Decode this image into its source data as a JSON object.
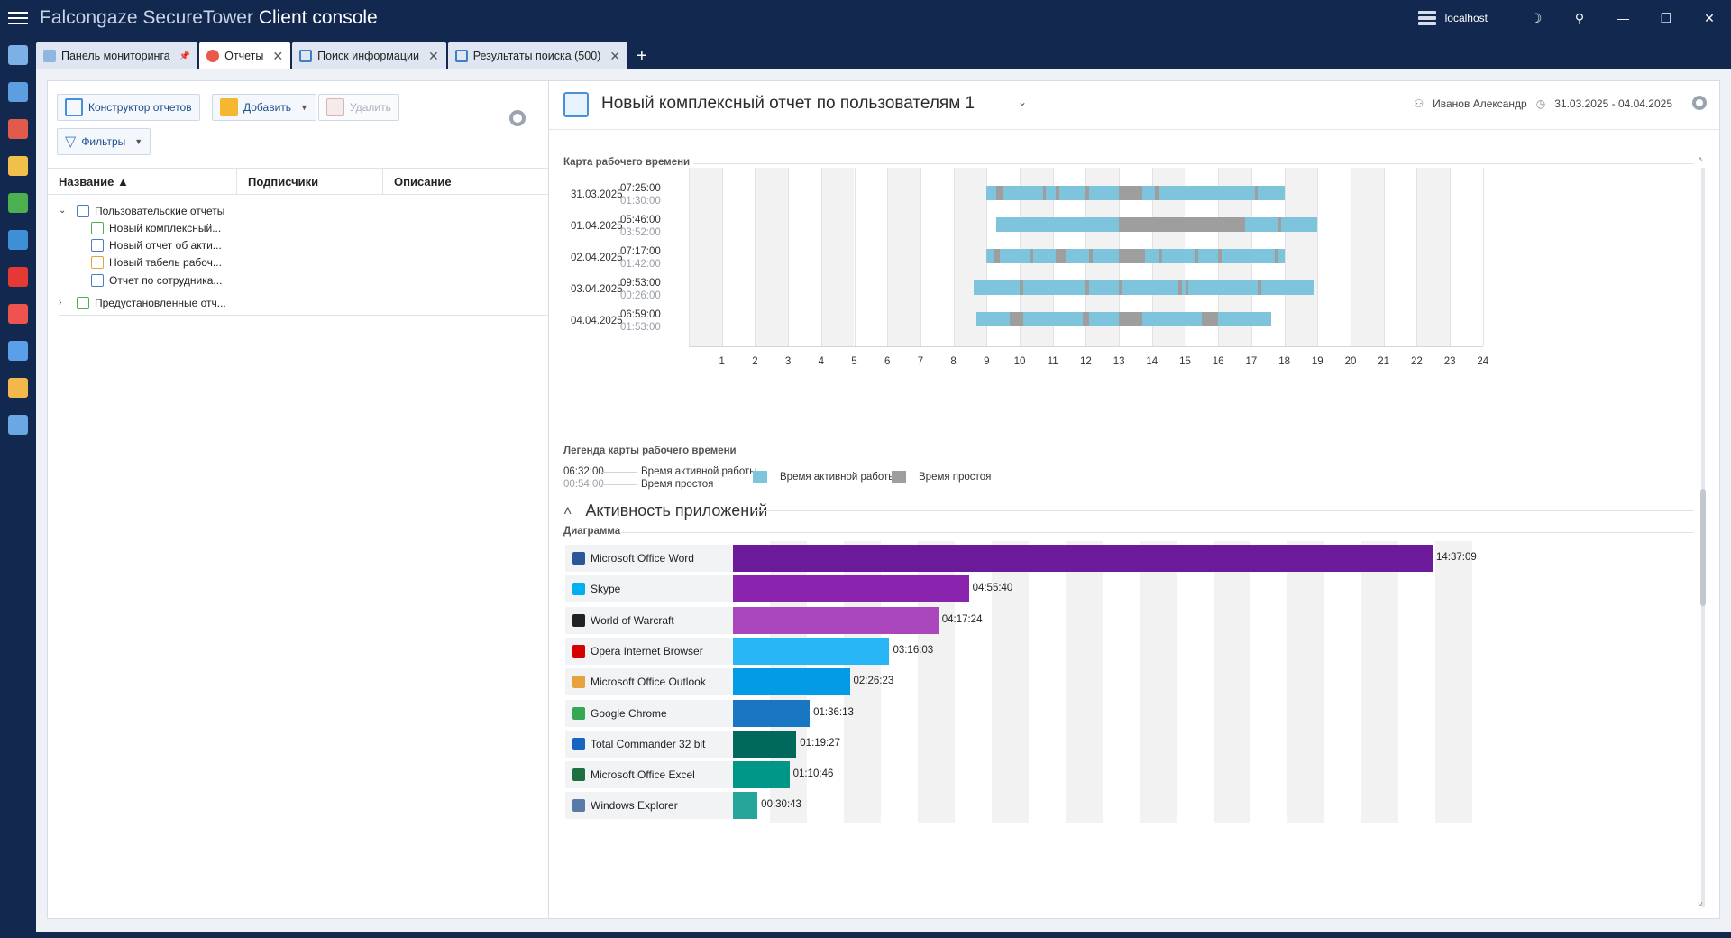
{
  "app": {
    "title_prefix": "Falcongaze SecureTower",
    "title_main": "Client console",
    "server": "localhost"
  },
  "window_controls": {
    "theme": "☽",
    "user": "⚲",
    "minimize": "—",
    "restore": "❐",
    "close": "✕"
  },
  "tabs": [
    {
      "label": "Панель мониторинга",
      "close": "📌"
    },
    {
      "label": "Отчеты",
      "close": "✕"
    },
    {
      "label": "Поиск информации",
      "close": "✕"
    },
    {
      "label": "Результаты поиска (500)",
      "close": "✕"
    }
  ],
  "add_tab": "+",
  "left": {
    "toolbar": {
      "constructor": "Конструктор отчетов",
      "add": "Добавить",
      "delete": "Удалить",
      "filters": "Фильтры"
    },
    "columns": {
      "name": "Название ▲",
      "subscribers": "Подписчики",
      "description": "Описание"
    },
    "tree": {
      "group1": "Пользовательские отчеты",
      "items": [
        "Новый комплексный...",
        "Новый отчет об акти...",
        "Новый табель рабоч...",
        "Отчет по сотрудника..."
      ],
      "group2": "Предустановленные отч..."
    }
  },
  "report": {
    "title": "Новый комплексный отчет по пользователям 1",
    "dropdown": "⌄",
    "user": "Иванов Александр",
    "period": "31.03.2025 - 04.04.2025"
  },
  "timesheet": {
    "label": "Карта рабочего времени",
    "hours": [
      "1",
      "2",
      "3",
      "4",
      "5",
      "6",
      "7",
      "8",
      "9",
      "10",
      "11",
      "12",
      "13",
      "14",
      "15",
      "16",
      "17",
      "18",
      "19",
      "20",
      "21",
      "22",
      "23",
      "24"
    ],
    "days": [
      {
        "date": "31.03.2025",
        "active": "07:25:00",
        "idle": "01:30:00",
        "start": 9.0,
        "end": 18.0,
        "idle_segments": [
          [
            9.3,
            9.5
          ],
          [
            10.7,
            10.8
          ],
          [
            11.1,
            11.2
          ],
          [
            12.0,
            12.1
          ],
          [
            13.0,
            13.1
          ],
          [
            13.1,
            13.7
          ],
          [
            14.1,
            14.2
          ],
          [
            17.1,
            17.2
          ]
        ]
      },
      {
        "date": "01.04.2025",
        "active": "05:46:00",
        "idle": "03:52:00",
        "start": 9.3,
        "end": 19.0,
        "idle_segments": [
          [
            13.0,
            16.8
          ],
          [
            17.8,
            17.9
          ]
        ]
      },
      {
        "date": "02.04.2025",
        "active": "07:17:00",
        "idle": "01:42:00",
        "start": 9.0,
        "end": 18.0,
        "idle_segments": [
          [
            9.2,
            9.4
          ],
          [
            10.3,
            10.4
          ],
          [
            11.1,
            11.4
          ],
          [
            12.1,
            12.2
          ],
          [
            13.0,
            13.1
          ],
          [
            13.1,
            13.8
          ],
          [
            14.2,
            14.3
          ],
          [
            15.3,
            15.4
          ],
          [
            16.0,
            16.1
          ],
          [
            17.7,
            17.8
          ]
        ]
      },
      {
        "date": "03.04.2025",
        "active": "09:53:00",
        "idle": "00:26:00",
        "start": 8.6,
        "end": 18.9,
        "idle_segments": [
          [
            10.0,
            10.1
          ],
          [
            12.0,
            12.1
          ],
          [
            13.0,
            13.1
          ],
          [
            14.8,
            14.9
          ],
          [
            15.0,
            15.1
          ],
          [
            17.2,
            17.3
          ]
        ]
      },
      {
        "date": "04.04.2025",
        "active": "06:59:00",
        "idle": "01:53:00",
        "start": 8.7,
        "end": 17.6,
        "idle_segments": [
          [
            9.7,
            10.1
          ],
          [
            11.9,
            12.1
          ],
          [
            13.0,
            13.7
          ],
          [
            15.5,
            16.0
          ]
        ]
      }
    ],
    "legend_label": "Легенда карты рабочего времени",
    "legend_active_value": "06:32:00",
    "legend_idle_value": "00:54:00",
    "legend_active_text": "Время активной работы",
    "legend_idle_text": "Время простоя",
    "colors": {
      "active": "#7ec4dc",
      "idle": "#9e9e9e"
    }
  },
  "activity": {
    "title": "Активность приложений",
    "collapse": "˄",
    "diagram_label": "Диаграмма"
  },
  "chart_data": {
    "type": "bar",
    "orientation": "horizontal",
    "xlabel": "",
    "ylabel": "",
    "categories": [
      "Microsoft Office Word",
      "Skype",
      "World of Warcraft",
      "Opera Internet Browser",
      "Microsoft Office Outlook",
      "Google Chrome",
      "Total Commander 32 bit",
      "Microsoft Office Excel",
      "Windows Explorer"
    ],
    "values": [
      52629,
      17740,
      15444,
      11763,
      8783,
      5773,
      4767,
      4246,
      1843
    ],
    "labels": [
      "14:37:09",
      "04:55:40",
      "04:17:24",
      "03:16:03",
      "02:26:23",
      "01:36:13",
      "01:19:27",
      "01:10:46",
      "00:30:43"
    ],
    "colors": [
      "#6b1a99",
      "#8a23ad",
      "#ab47bc",
      "#29b6f6",
      "#039be5",
      "#1976c2",
      "#00695c",
      "#009688",
      "#26a69a"
    ],
    "icon_colors": [
      "#2b579a",
      "#00aff0",
      "#222222",
      "#d50000",
      "#e6a23c",
      "#34a853",
      "#1565c0",
      "#1d6f42",
      "#5a7aa8"
    ]
  }
}
